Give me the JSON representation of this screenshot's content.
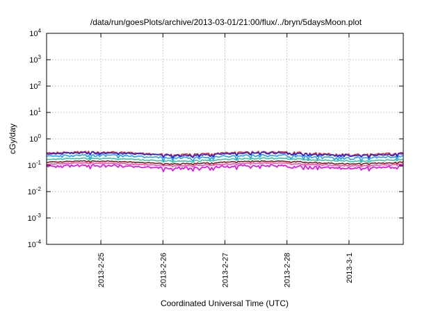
{
  "chart_data": {
    "type": "line",
    "title": "/data/run/goesPlots/archive/2013-03-01/21:00/flux/../bryn/5daysMoon.plot",
    "xlabel": "Coordinated Universal Time (UTC)",
    "ylabel": "cGy/day",
    "yscale": "log",
    "ylim": [
      0.0001,
      10000
    ],
    "y_ticks": [
      {
        "value": 0.0001,
        "base": "10",
        "exp": "-4"
      },
      {
        "value": 0.001,
        "base": "10",
        "exp": "-3"
      },
      {
        "value": 0.01,
        "base": "10",
        "exp": "-2"
      },
      {
        "value": 0.1,
        "base": "10",
        "exp": "-1"
      },
      {
        "value": 1,
        "base": "10",
        "exp": "0"
      },
      {
        "value": 10,
        "base": "10",
        "exp": "1"
      },
      {
        "value": 100,
        "base": "10",
        "exp": "2"
      },
      {
        "value": 1000,
        "base": "10",
        "exp": "3"
      },
      {
        "value": 10000,
        "base": "10",
        "exp": "4"
      }
    ],
    "xlim": [
      "2013-02-24T03:00",
      "2013-03-01T21:00"
    ],
    "x_ticks": [
      {
        "value": "2013-02-25T00:00",
        "label": "2013-2-25"
      },
      {
        "value": "2013-02-26T00:00",
        "label": "2013-2-26"
      },
      {
        "value": "2013-02-27T00:00",
        "label": "2013-2-27"
      },
      {
        "value": "2013-02-28T00:00",
        "label": "2013-2-28"
      },
      {
        "value": "2013-03-01T00:00",
        "label": "2013-3-1"
      }
    ],
    "grid": true,
    "series": [
      {
        "color": "#e8201c",
        "base": 0.29,
        "dip": 0.28,
        "noise": 0.05
      },
      {
        "color": "#2323f0",
        "base": 0.27,
        "dip": 0.26,
        "noise": 0.05
      },
      {
        "color": "#23a0ee",
        "base": 0.22,
        "dip": 0.33,
        "noise": 0.06
      },
      {
        "color": "#2ec8a8",
        "base": 0.165,
        "dip": 0.14,
        "noise": 0.04
      },
      {
        "color": "#7a1c1c",
        "base": 0.13,
        "dip": 0.12,
        "noise": 0.035
      },
      {
        "color": "#ff4aa8",
        "base": 0.11,
        "dip": 0.12,
        "noise": 0.035
      },
      {
        "color": "#f000f0",
        "base": 0.09,
        "dip": 0.3,
        "noise": 0.08
      }
    ]
  }
}
